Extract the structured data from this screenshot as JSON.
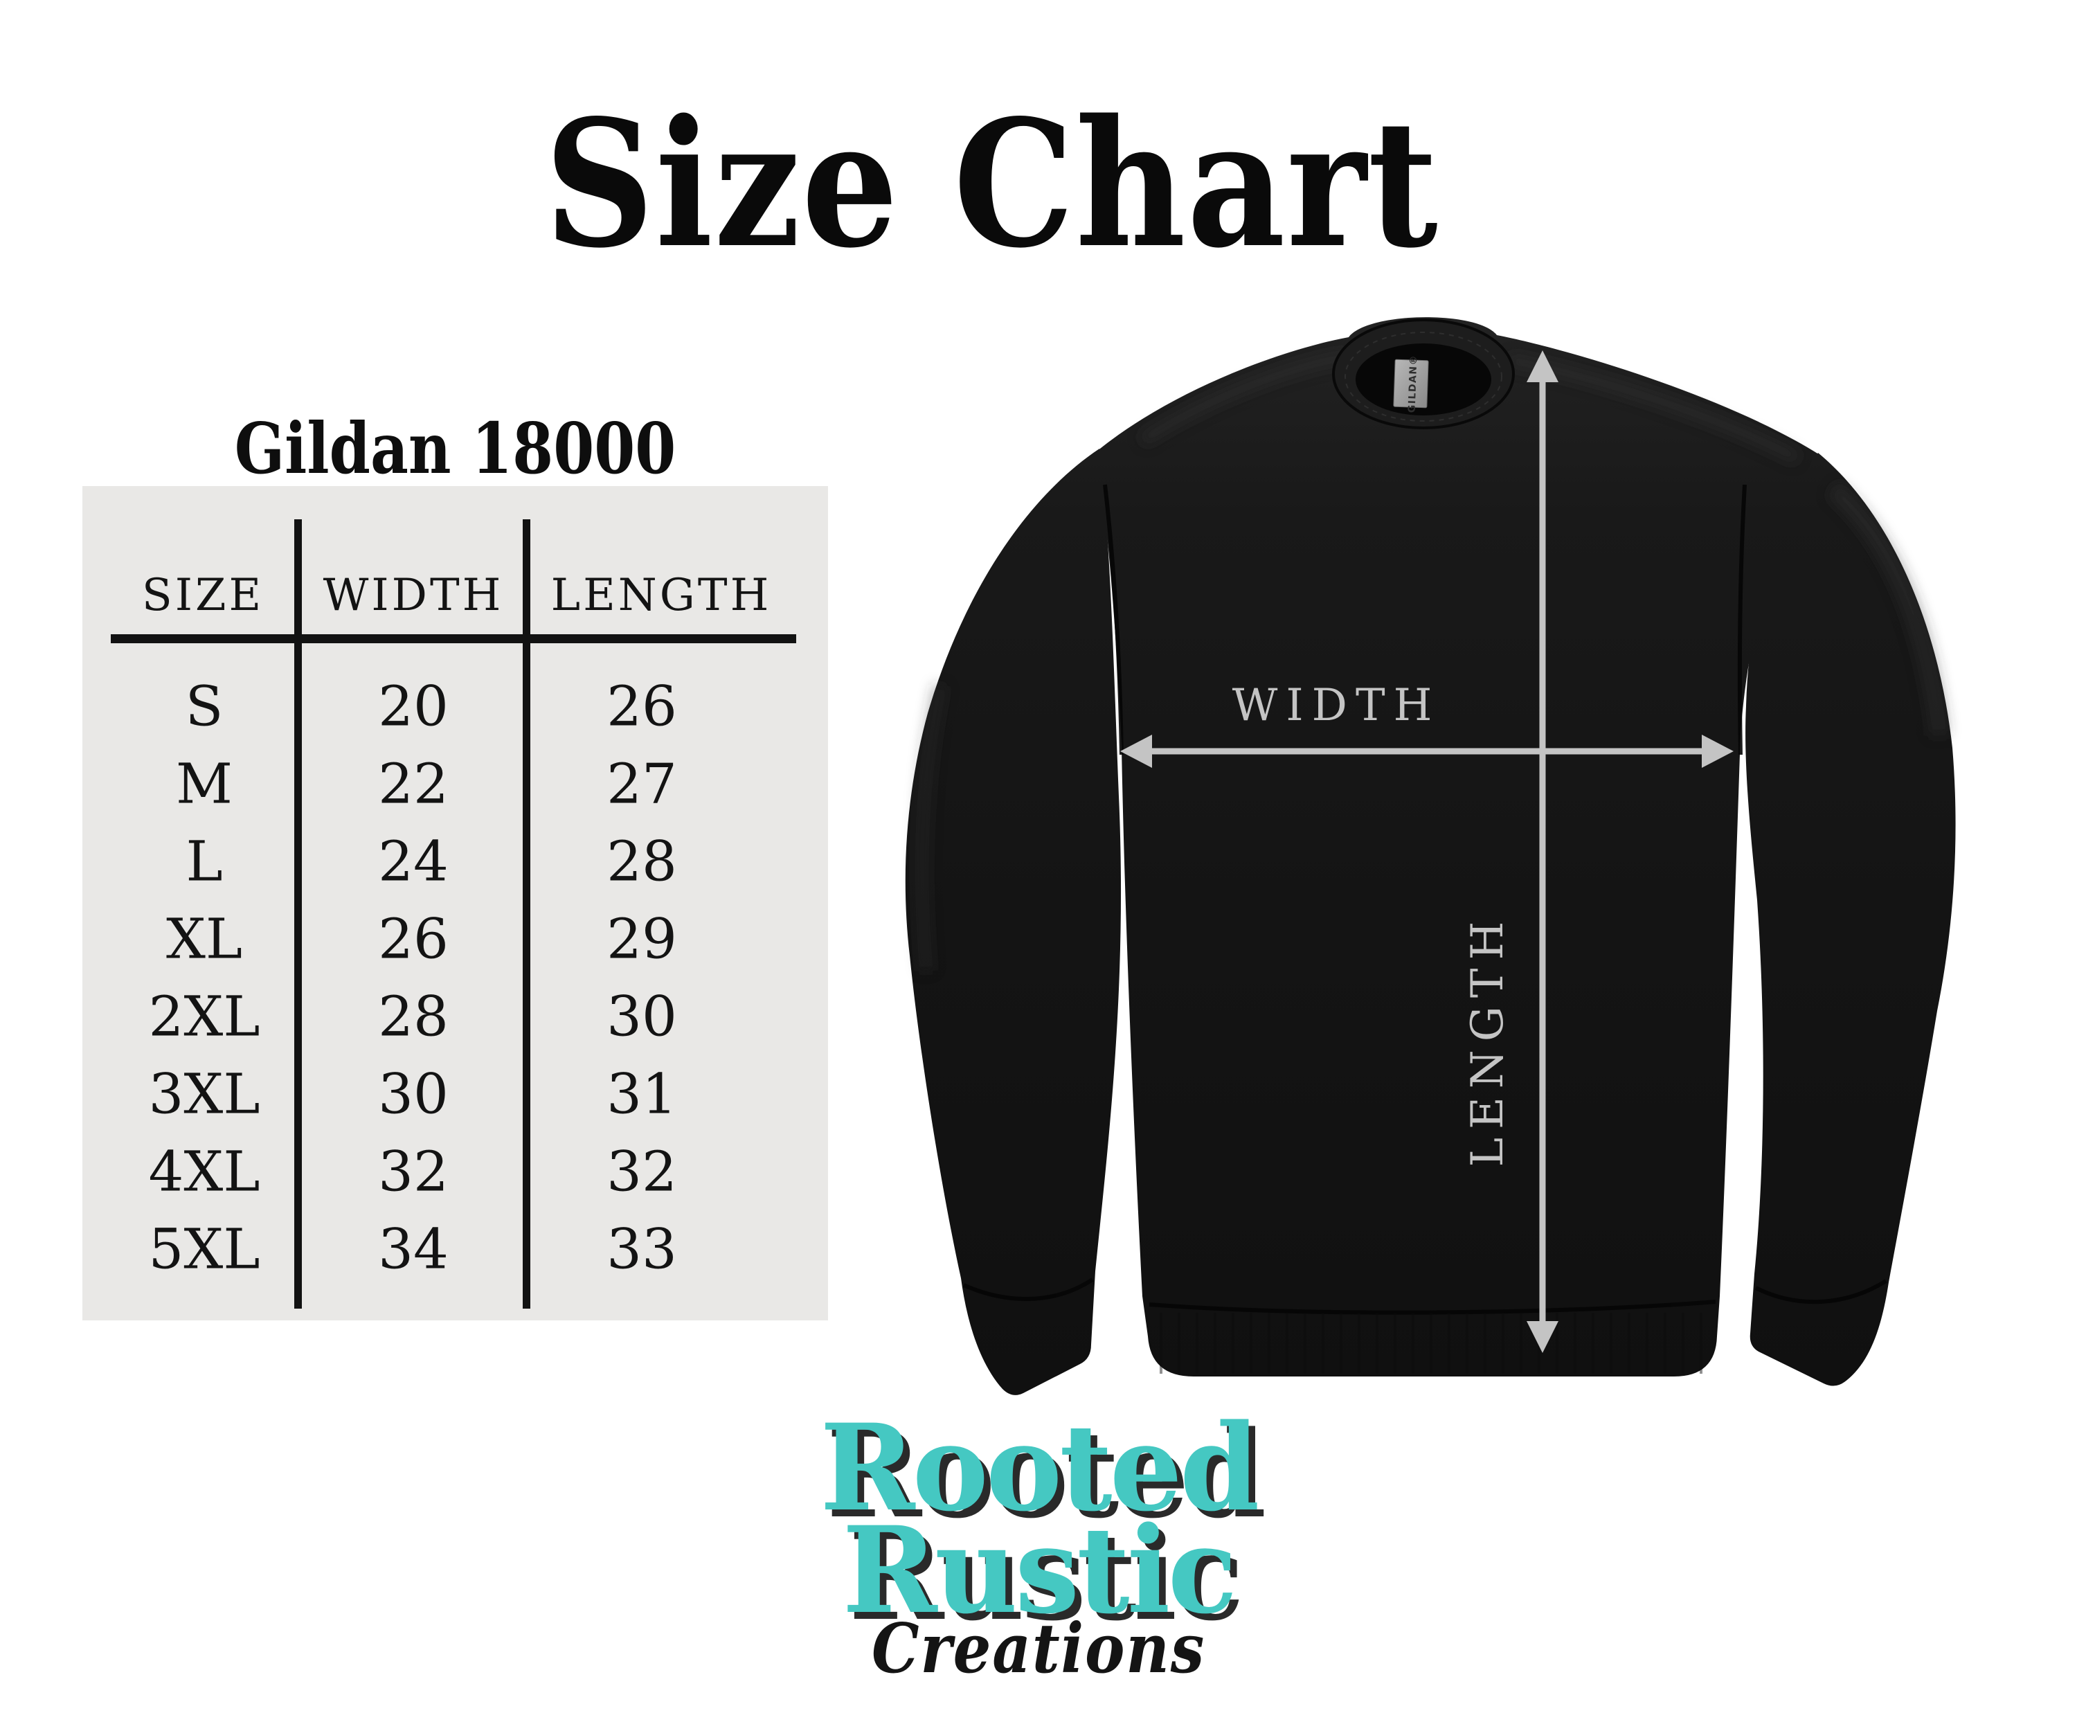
{
  "page": {
    "title": "Size Chart",
    "background": "#ffffff"
  },
  "size_table": {
    "heading": "Gildan 18000",
    "columns": [
      "SIZE",
      "WIDTH",
      "LENGTH"
    ],
    "rows": [
      [
        "S",
        "20",
        "26"
      ],
      [
        "M",
        "22",
        "27"
      ],
      [
        "L",
        "24",
        "28"
      ],
      [
        "XL",
        "26",
        "29"
      ],
      [
        "2XL",
        "28",
        "30"
      ],
      [
        "3XL",
        "30",
        "31"
      ],
      [
        "4XL",
        "32",
        "32"
      ],
      [
        "5XL",
        "34",
        "33"
      ]
    ],
    "panel_color": "#e9e8e6",
    "line_color": "#121212",
    "text_color": "#131313"
  },
  "diagram": {
    "garment": "black crewneck sweatshirt",
    "width_label": "WIDTH",
    "length_label": "LENGTH",
    "tag_label": "GILDAN®",
    "annotation_color": "#c4c4c4",
    "shirt_color": "#161616"
  },
  "brand": {
    "line1": "Rooted",
    "line2": "Rustic",
    "line3": "Creations",
    "accent_color": "#45c8c2",
    "shadow_color": "#2a2a2a",
    "script_color": "#141414"
  }
}
